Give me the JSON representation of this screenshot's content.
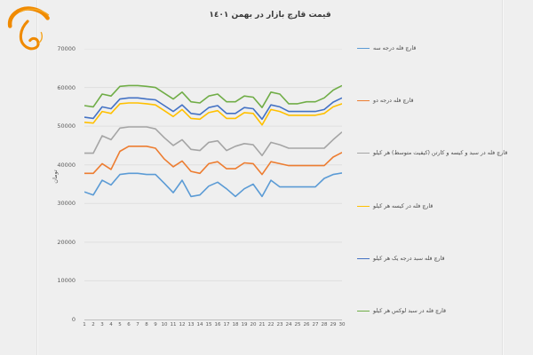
{
  "page": {
    "background": "#efefef",
    "divider_color": "#e2e2e2"
  },
  "header": {
    "title": "قیمت قارچ بازار در بهمن ١٤٠١"
  },
  "logo": {
    "name": "mushroom-brand-logo",
    "color": "#F08A00"
  },
  "chart_data": {
    "type": "line",
    "title": "قیمت قارچ بازار در بهمن ١٤٠١",
    "xlabel": "",
    "ylabel": "تومان",
    "ylim": [
      0,
      70000
    ],
    "yticks": [
      0,
      10000,
      20000,
      30000,
      40000,
      50000,
      60000,
      70000
    ],
    "x": [
      1,
      2,
      3,
      4,
      5,
      6,
      7,
      8,
      9,
      10,
      11,
      12,
      13,
      14,
      15,
      16,
      17,
      18,
      19,
      20,
      21,
      22,
      23,
      24,
      25,
      26,
      27,
      28,
      29,
      30
    ],
    "grid": true,
    "legend_position": "right",
    "grid_color": "#dfdfdf",
    "axis_text_color": "#595959",
    "series": [
      {
        "name": "قارچ فله درجه سه",
        "color": "#5B9BD5",
        "values": [
          33000,
          32200,
          36000,
          34800,
          37500,
          37800,
          37800,
          37500,
          37500,
          35200,
          32800,
          36000,
          31800,
          32200,
          34500,
          35500,
          33800,
          31800,
          33800,
          35000,
          31800,
          36000,
          34300,
          34300,
          34300,
          34300,
          34300,
          36500,
          37500,
          37900
        ]
      },
      {
        "name": "قارچ فله درجه دو",
        "color": "#ED7D31",
        "values": [
          37800,
          37800,
          40300,
          38800,
          43500,
          44800,
          44800,
          44800,
          44300,
          41500,
          39500,
          41000,
          38300,
          37800,
          40300,
          40800,
          39000,
          39000,
          40500,
          40300,
          37500,
          40800,
          40300,
          39800,
          39800,
          39800,
          39800,
          39800,
          42000,
          43200
        ]
      },
      {
        "name": "قارچ فله در سبد و کیسه و کارتن (کیفیت متوسط) هر کیلو",
        "color": "#A5A5A5",
        "values": [
          43000,
          43000,
          47500,
          46500,
          49500,
          49800,
          49800,
          49800,
          49300,
          47000,
          45000,
          46500,
          44000,
          43700,
          45800,
          46200,
          43700,
          44800,
          45500,
          45200,
          42400,
          45800,
          45200,
          44300,
          44300,
          44300,
          44300,
          44300,
          46500,
          48500
        ]
      },
      {
        "name": "قارچ فله در کیسه هر کیلو",
        "color": "#FFC000",
        "values": [
          51000,
          50800,
          53800,
          53300,
          55800,
          56000,
          56000,
          55800,
          55500,
          54000,
          52500,
          54300,
          52000,
          51800,
          53500,
          54000,
          52000,
          52000,
          53500,
          53300,
          50300,
          54300,
          53800,
          52800,
          52800,
          52800,
          52800,
          53300,
          55000,
          55800
        ]
      },
      {
        "name": "قارچ فله سبد درجه یک هر کیلو",
        "color": "#4472C4",
        "values": [
          52300,
          52000,
          55000,
          54500,
          57000,
          57300,
          57300,
          57000,
          56800,
          55300,
          53800,
          55500,
          53300,
          53000,
          54800,
          55300,
          53300,
          53300,
          54800,
          54500,
          51800,
          55500,
          55000,
          53800,
          53800,
          53800,
          53800,
          54300,
          56200,
          57300
        ]
      },
      {
        "name": "قارچ فله در سبد لوکس هر کیلو",
        "color": "#70AD47",
        "values": [
          55300,
          55000,
          58300,
          57800,
          60300,
          60500,
          60500,
          60300,
          60000,
          58500,
          57000,
          58800,
          56300,
          56000,
          57800,
          58300,
          56300,
          56300,
          57800,
          57500,
          54800,
          58800,
          58300,
          55800,
          55800,
          56300,
          56300,
          57300,
          59300,
          60500
        ]
      }
    ]
  }
}
